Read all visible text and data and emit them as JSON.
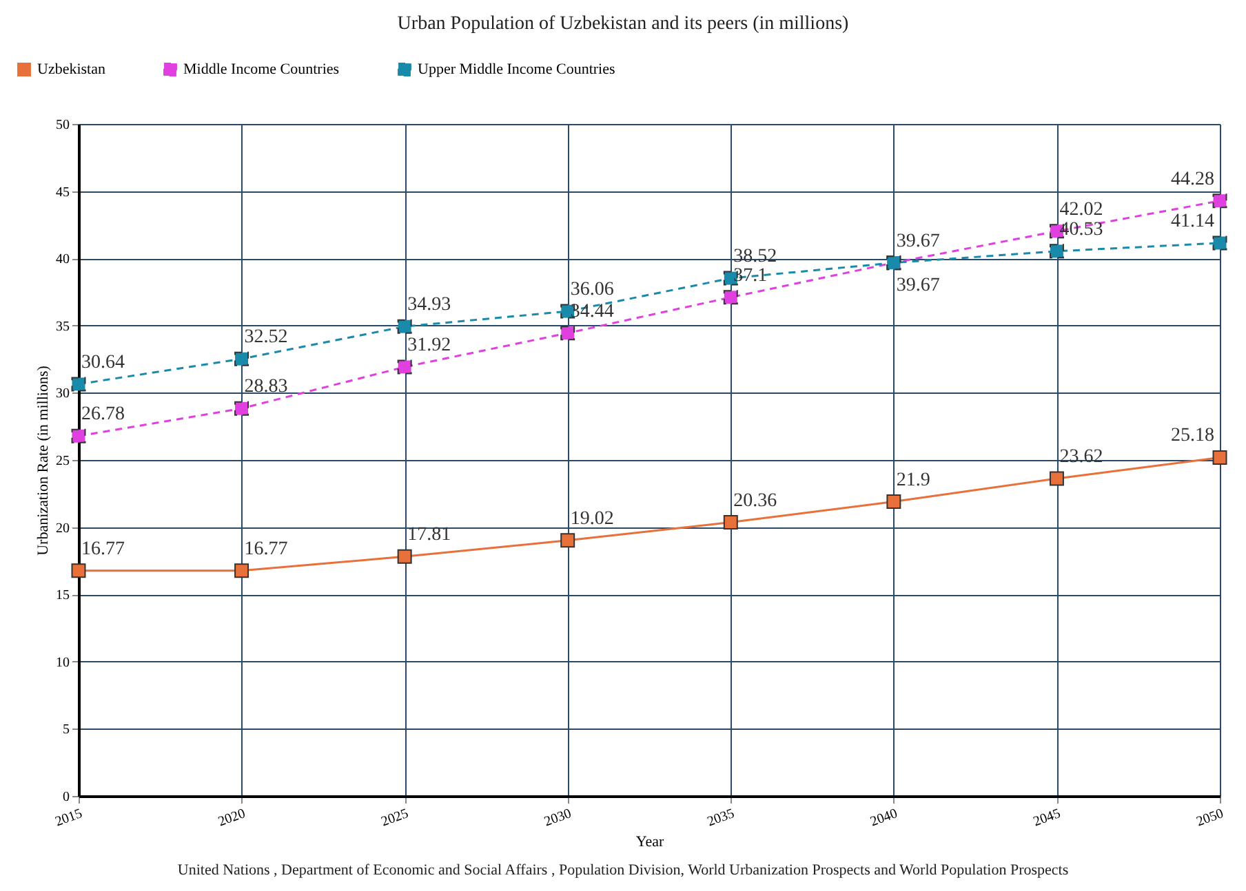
{
  "chart_data": {
    "type": "line",
    "title": "Urban Population of Uzbekistan and its peers (in millions)",
    "xlabel": "Year",
    "ylabel": "Urbanization Rate (in millions)",
    "x": [
      2015,
      2020,
      2025,
      2030,
      2035,
      2040,
      2045,
      2050
    ],
    "series": [
      {
        "name": "Uzbekistan",
        "color": "#e8703a",
        "line_style": "solid",
        "values": [
          16.77,
          16.77,
          17.81,
          19.02,
          20.36,
          21.9,
          23.62,
          25.18
        ]
      },
      {
        "name": "Middle Income Countries",
        "color": "#e040e0",
        "line_style": "dashed",
        "values": [
          26.78,
          28.83,
          31.92,
          34.44,
          37.1,
          39.67,
          42.02,
          44.28
        ]
      },
      {
        "name": "Upper Middle Income Countries",
        "color": "#1a8aaa",
        "line_style": "dashed",
        "values": [
          30.64,
          32.52,
          34.93,
          36.06,
          38.52,
          39.67,
          40.53,
          41.14
        ]
      }
    ],
    "xlim": [
      2015,
      2050
    ],
    "xticks": [
      2015,
      2020,
      2025,
      2030,
      2035,
      2040,
      2045,
      2050
    ],
    "ylim": [
      0,
      50
    ],
    "yticks": [
      0,
      5,
      10,
      15,
      20,
      25,
      30,
      35,
      40,
      45,
      50
    ],
    "grid": true,
    "legend": "top",
    "marker": "square",
    "data_labels": true,
    "annotations": [
      "United Nations , Department of Economic and Social Affairs , Population Division, World Urbanization Prospects and World Population Prospects"
    ]
  }
}
